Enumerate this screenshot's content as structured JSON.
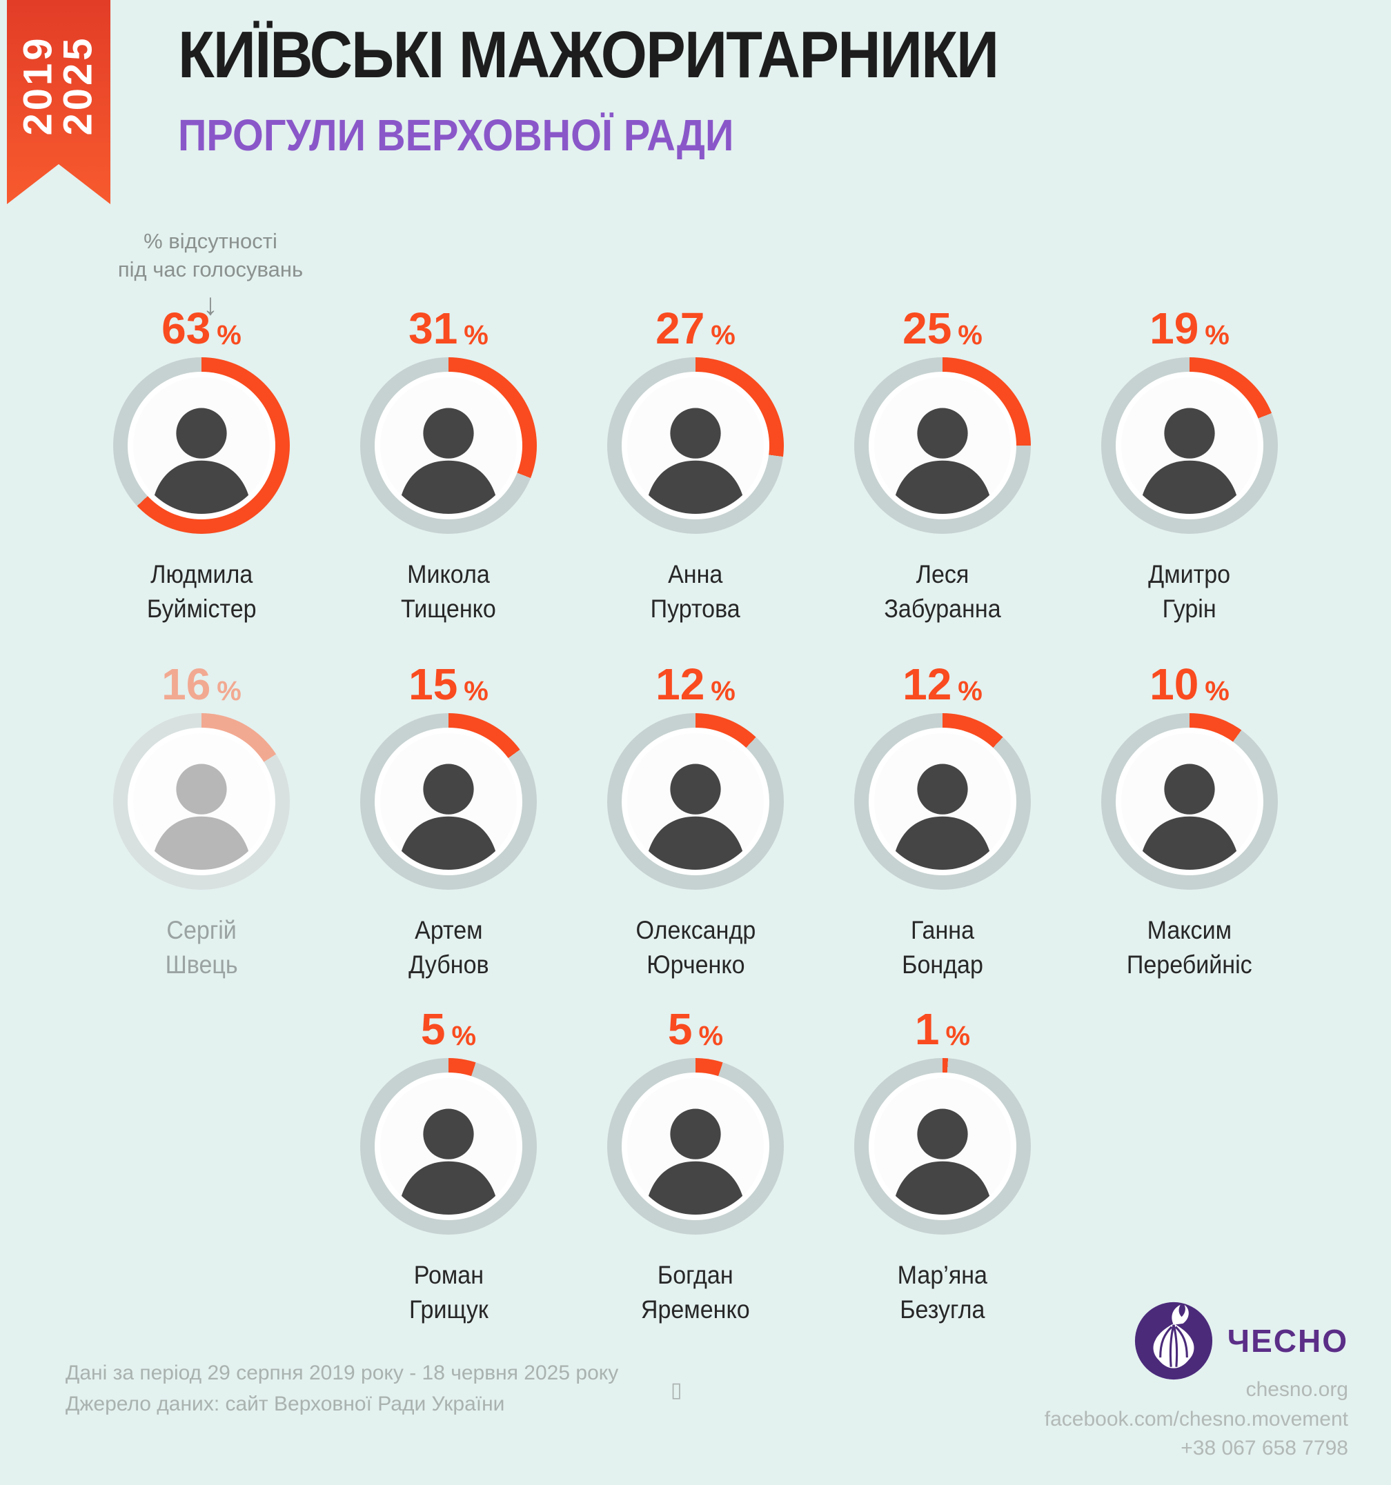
{
  "colors": {
    "background": "#e3f1ef",
    "accent": "#f94b1f",
    "accent_faded": "#f2a991",
    "ring": "#c6d2d1",
    "ring_faded": "#d8e1e0",
    "purple_subtitle": "#8a57c9",
    "logo_purple": "#4b2a7a",
    "brand_text_purple": "#5b2e87",
    "title_black": "#1d1d1d",
    "gray_text": "#a9b2af"
  },
  "ribbon": {
    "years": "2019 2025",
    "year_top": "2019",
    "year_bottom": "2025"
  },
  "header": {
    "title": "КИЇВСЬКІ МАЖОРИТАРНИКИ",
    "subtitle": "ПРОГУЛИ ВЕРХОВНОЇ РАДИ"
  },
  "annotation": {
    "line1": "% відсутності",
    "line2": "під час голосувань",
    "arrow": "↓"
  },
  "labels": {
    "percent_sign": "%"
  },
  "layout": {
    "row_sizes": [
      5,
      5,
      3
    ]
  },
  "people": [
    {
      "first": "Людмила",
      "last": "Буймістер",
      "pct": 63,
      "faded": false
    },
    {
      "first": "Микола",
      "last": "Тищенко",
      "pct": 31,
      "faded": false
    },
    {
      "first": "Анна",
      "last": "Пуртова",
      "pct": 27,
      "faded": false
    },
    {
      "first": "Леся",
      "last": "Забуранна",
      "pct": 25,
      "faded": false
    },
    {
      "first": "Дмитро",
      "last": "Гурін",
      "pct": 19,
      "faded": false
    },
    {
      "first": "Сергій",
      "last": "Швець",
      "pct": 16,
      "faded": true
    },
    {
      "first": "Артем",
      "last": "Дубнов",
      "pct": 15,
      "faded": false
    },
    {
      "first": "Олександр",
      "last": "Юрченко",
      "pct": 12,
      "faded": false
    },
    {
      "first": "Ганна",
      "last": "Бондар",
      "pct": 12,
      "faded": false
    },
    {
      "first": "Максим",
      "last": "Перебийніс",
      "pct": 10,
      "faded": false
    },
    {
      "first": "Роман",
      "last": "Грищук",
      "pct": 5,
      "faded": false
    },
    {
      "first": "Богдан",
      "last": "Яременко",
      "pct": 5,
      "faded": false
    },
    {
      "first": "Мар’яна",
      "last": "Безугла",
      "pct": 1,
      "faded": false
    }
  ],
  "footer": {
    "period": "Дані за період 29 серпня 2019 року - 18 червня 2025 року",
    "source": "Джерело даних: сайт Верховної Ради України",
    "missing_glyph": "▯"
  },
  "brand": {
    "name": "ЧЕСНО",
    "site": "chesno.org",
    "facebook": "facebook.com/chesno.movement",
    "phone": "+38 067 658 7798"
  },
  "chart_data": {
    "type": "pie",
    "variant": "donut ring per person (share absent, rest gray)",
    "title": "КИЇВСЬКІ МАЖОРИТАРНИКИ — ПРОГУЛИ ВЕРХОВНОЇ РАДИ",
    "unit": "%",
    "range": [
      0,
      100
    ],
    "categories": [
      "Людмила Буймістер",
      "Микола Тищенко",
      "Анна Пуртова",
      "Леся Забуранна",
      "Дмитро Гурін",
      "Сергій Швець",
      "Артем Дубнов",
      "Олександр Юрченко",
      "Ганна Бондар",
      "Максим Перебийніс",
      "Роман Грищук",
      "Богдан Яременко",
      "Мар’яна Безугла"
    ],
    "values": [
      63,
      31,
      27,
      25,
      19,
      16,
      15,
      12,
      12,
      10,
      5,
      5,
      1
    ],
    "note": "Сергій Швець (16 %) зображений напівпрозорим (неактивний мандат)"
  }
}
